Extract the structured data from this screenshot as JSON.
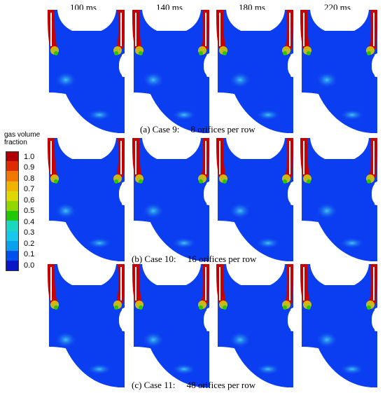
{
  "time_labels": [
    "100 ms",
    "140 ms",
    "180 ms",
    "220 ms"
  ],
  "rows": [
    {
      "caption": "(a) Case 9:     8 orifices per row"
    },
    {
      "caption": "(b) Case 10:     16 orifices per row"
    },
    {
      "caption": "(c) Case 11:     48 orifices per row"
    }
  ],
  "legend": {
    "title_line1": "gas volume",
    "title_line2": "fraction",
    "labels": [
      "1.0",
      "0.9",
      "0.8",
      "0.7",
      "0.6",
      "0.5",
      "0.4",
      "0.3",
      "0.2",
      "0.1",
      "0.0"
    ],
    "colors": [
      "#b00000",
      "#e02a00",
      "#f07800",
      "#f0b400",
      "#dcd800",
      "#8ed800",
      "#22c800",
      "#18d8c0",
      "#18c8ec",
      "#0aa0f0",
      "#0050f0",
      "#0818c8"
    ]
  }
}
